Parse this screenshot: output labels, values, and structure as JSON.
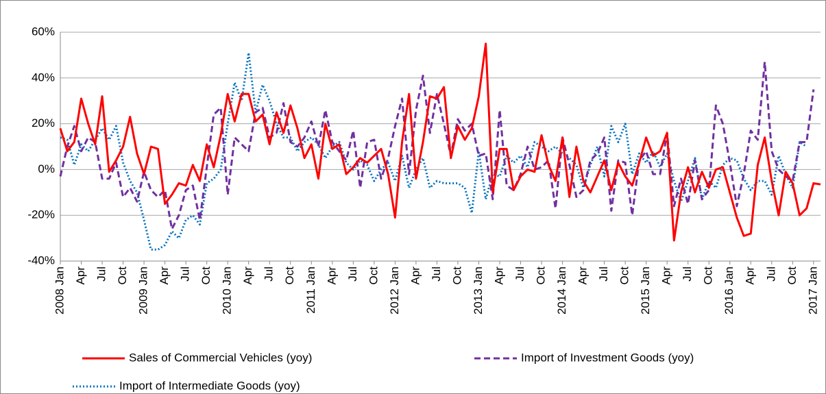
{
  "chart_data": {
    "type": "line",
    "categories": [
      "2008 Jan",
      null,
      null,
      "Apr",
      null,
      null,
      "Jul",
      null,
      null,
      "Oct",
      null,
      null,
      "2009 Jan",
      null,
      null,
      "Apr",
      null,
      null,
      "Jul",
      null,
      null,
      "Oct",
      null,
      null,
      "2010 Jan",
      null,
      null,
      "Apr",
      null,
      null,
      "Jul",
      null,
      null,
      "Oct",
      null,
      null,
      "2011 Jan",
      null,
      null,
      "Apr",
      null,
      null,
      "Jul",
      null,
      null,
      "Oct",
      null,
      null,
      "2012 Jan",
      null,
      null,
      "Apr",
      null,
      null,
      "Jul",
      null,
      null,
      "Oct",
      null,
      null,
      "2013 Jan",
      null,
      null,
      "Apr",
      null,
      null,
      "Jul",
      null,
      null,
      "Oct",
      null,
      null,
      "2014 Jan",
      null,
      null,
      "Apr",
      null,
      null,
      "Jul",
      null,
      null,
      "Oct",
      null,
      null,
      "2015 Jan",
      null,
      null,
      "Apr",
      null,
      null,
      "Jul",
      null,
      null,
      "Oct",
      null,
      null,
      "2016 Jan",
      null,
      null,
      "Apr",
      null,
      null,
      "Jul",
      null,
      null,
      "Oct",
      null,
      null,
      "2017 Jan",
      null
    ],
    "series": [
      {
        "name": "Sales of Commercial Vehicles (yoy)",
        "color": "#ff0000",
        "style": "solid",
        "values": [
          18,
          8,
          12,
          31,
          20,
          11,
          32,
          -1,
          4,
          10,
          23,
          7,
          -2,
          10,
          9,
          -15,
          -11,
          -6,
          -7,
          2,
          -5,
          11,
          1,
          15,
          33,
          21,
          33,
          33,
          21,
          24,
          11,
          25,
          16,
          28,
          18,
          5,
          11,
          -4,
          20,
          9,
          11,
          -2,
          1,
          5,
          3,
          6,
          9,
          -2,
          -21,
          12,
          33,
          -4,
          12,
          32,
          31,
          36,
          5,
          19,
          13,
          18,
          32,
          55,
          -10,
          9,
          9,
          -9,
          -3,
          0,
          -1,
          15,
          2,
          -5,
          14,
          -12,
          10,
          -5,
          -10,
          -3,
          4,
          -9,
          3,
          -3,
          -7,
          3,
          14,
          6,
          8,
          16,
          -31,
          -10,
          1,
          -10,
          -1,
          -8,
          0,
          1,
          -10,
          -21,
          -29,
          -28,
          2,
          14,
          -5,
          -20,
          -1,
          -6,
          -20,
          -17,
          -6,
          -6.5
        ]
      },
      {
        "name": "Import of Investment Goods (yoy)",
        "color": "#7030a0",
        "style": "dash",
        "values": [
          -3,
          10,
          19,
          8,
          14,
          12,
          -4,
          -4,
          3,
          -12,
          -8,
          -14,
          -1,
          -9,
          -12,
          -9,
          -26,
          -20,
          -9,
          -7,
          -22,
          1,
          24,
          27,
          -11,
          14,
          11,
          8,
          25,
          27,
          14,
          16,
          29,
          12,
          10,
          14,
          21,
          10,
          26,
          12,
          8,
          4,
          17,
          -8,
          12,
          13,
          -4,
          5,
          19,
          31,
          -2,
          26,
          41,
          16,
          33,
          20,
          6,
          22,
          17,
          20,
          6,
          7,
          -13,
          26,
          -7,
          -9,
          -2,
          10,
          0,
          1,
          4,
          -17,
          14,
          2,
          -12,
          -9,
          4,
          7,
          14,
          -18,
          4,
          3,
          -20,
          4,
          8,
          -2,
          -2,
          16,
          -16,
          -4,
          -15,
          4,
          -13,
          -9,
          28,
          20,
          3,
          -16,
          -2,
          17,
          13,
          47,
          8,
          0,
          -3,
          -5,
          12,
          12,
          35,
          null
        ]
      },
      {
        "name": "Import of Intermediate Goods (yoy)",
        "color": "#0070c0",
        "style": "dot",
        "values": [
          14,
          13,
          2,
          11,
          8,
          13,
          18,
          13,
          19,
          3,
          -5,
          -10,
          -22,
          -35,
          -35,
          -33,
          -27,
          -30,
          -22,
          -20,
          -24,
          -6,
          -4,
          0,
          20,
          38,
          30,
          51,
          25,
          37,
          30,
          20,
          14,
          14,
          8,
          12,
          14,
          11,
          5,
          10,
          12,
          3,
          0,
          4,
          2,
          -5,
          0,
          3,
          -5,
          6,
          -8,
          0,
          5,
          -8,
          -5,
          -6,
          -6,
          -6,
          -8,
          -19,
          8,
          -13,
          -2,
          -3,
          6,
          3,
          6,
          1,
          12,
          10,
          8,
          10,
          7,
          5,
          2,
          -8,
          2,
          10,
          -3,
          19,
          12,
          20,
          -2,
          7,
          3,
          8,
          1,
          7,
          -5,
          -14,
          -5,
          5,
          -13,
          -5,
          -8,
          2,
          5,
          4,
          -4,
          -9,
          -5,
          -5,
          -11,
          6,
          -2,
          -8,
          12,
          10,
          null,
          null
        ]
      }
    ],
    "ylim": [
      -40,
      60
    ],
    "yticks": [
      {
        "value": -40,
        "label": "-40%"
      },
      {
        "value": -20,
        "label": "-20%"
      },
      {
        "value": 0,
        "label": "0%"
      },
      {
        "value": 20,
        "label": "20%"
      },
      {
        "value": 40,
        "label": "40%"
      },
      {
        "value": 60,
        "label": "60%"
      }
    ],
    "grid": true
  }
}
